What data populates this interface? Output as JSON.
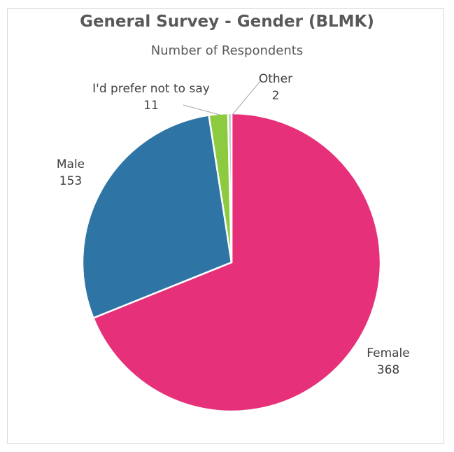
{
  "chart_data": {
    "type": "pie",
    "title": "General Survey - Gender (BLMK)",
    "subtitle": "Number of Respondents",
    "slices": [
      {
        "label": "Female",
        "value": 368,
        "color": "#E6317A"
      },
      {
        "label": "Male",
        "value": 153,
        "color": "#2E75A5"
      },
      {
        "label": "I'd prefer not to say",
        "value": 11,
        "color": "#8CCB3F"
      },
      {
        "label": "Other",
        "value": 2,
        "color": "#BFBFBF"
      }
    ],
    "start_angle_deg": 0,
    "direction": "clockwise",
    "legend": "none",
    "data_labels": "category name and value"
  }
}
